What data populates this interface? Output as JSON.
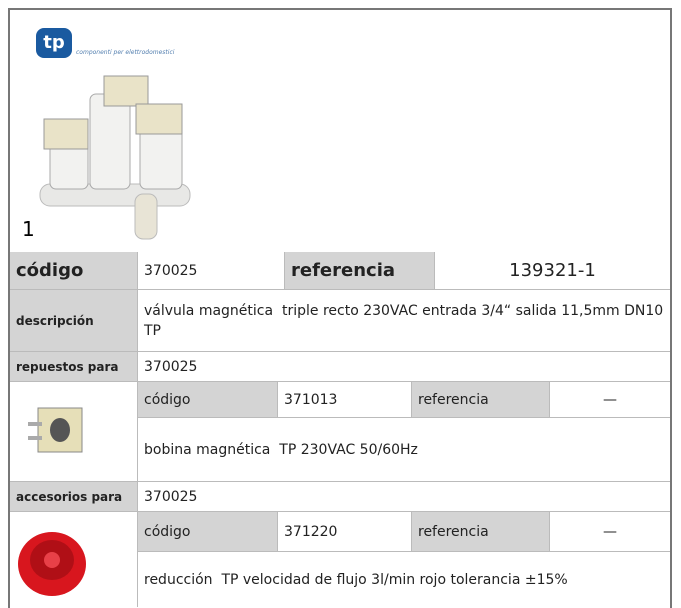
{
  "product": {
    "logo": {
      "brand": "tp",
      "tagline": "componenti per elettrodomestici"
    },
    "image_label": "1",
    "code_label": "código",
    "code": "370025",
    "reference_label": "referencia",
    "reference": "139321-1",
    "description_label": "descripción",
    "description": "válvula magnética  triple recto 230VAC entrada 3/4“ salida 11,5mm DN10 TP"
  },
  "spare_parts": {
    "label": "repuestos para",
    "for_code": "370025",
    "items": [
      {
        "code_label": "código",
        "code": "371013",
        "reference_label": "referencia",
        "reference": "—",
        "description": "bobina magnética  TP 230VAC 50/60Hz"
      }
    ]
  },
  "accessories": {
    "label": "accesorios para",
    "for_code": "370025",
    "items": [
      {
        "code_label": "código",
        "code": "371220",
        "reference_label": "referencia",
        "reference": "—",
        "description": "reducción  TP velocidad de flujo 3l/min rojo tolerancia ±15%"
      }
    ]
  }
}
